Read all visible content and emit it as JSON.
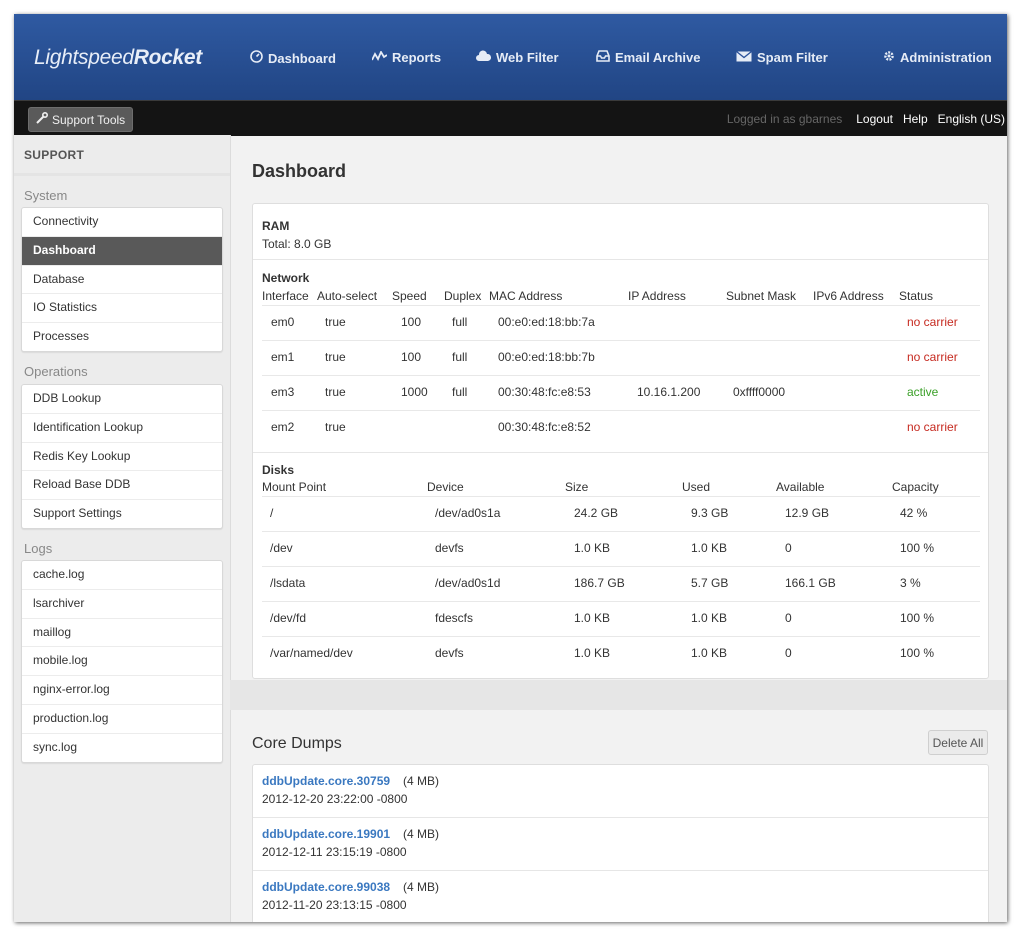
{
  "header": {
    "logo_light": "Lightspeed",
    "logo_bold": "Rocket",
    "nav": [
      {
        "label": "Dashboard",
        "icon": "dashboard-icon"
      },
      {
        "label": "Reports",
        "icon": "reports-icon"
      },
      {
        "label": "Web Filter",
        "icon": "web-filter-icon"
      },
      {
        "label": "Email Archive",
        "icon": "inbox-icon"
      },
      {
        "label": "Spam Filter",
        "icon": "envelope-icon"
      },
      {
        "label": "Administration",
        "icon": "gear-icon"
      }
    ]
  },
  "subbar": {
    "support_tools": "Support Tools",
    "logged_in": "Logged in as gbarnes",
    "logout": "Logout",
    "help": "Help",
    "language": "English (US)"
  },
  "sidebar": {
    "heading": "SUPPORT",
    "groups": [
      {
        "label": "System",
        "items": [
          "Connectivity",
          "Dashboard",
          "Database",
          "IO Statistics",
          "Processes"
        ]
      },
      {
        "label": "Operations",
        "items": [
          "DDB Lookup",
          "Identification Lookup",
          "Redis Key Lookup",
          "Reload Base DDB",
          "Support Settings"
        ]
      },
      {
        "label": "Logs",
        "items": [
          "cache.log",
          "lsarchiver",
          "maillog",
          "mobile.log",
          "nginx-error.log",
          "production.log",
          "sync.log"
        ]
      }
    ],
    "active": "Dashboard"
  },
  "main": {
    "title": "Dashboard",
    "ram": {
      "title": "RAM",
      "total": "Total: 8.0 GB"
    },
    "network": {
      "title": "Network",
      "columns": [
        "Interface",
        "Auto-select",
        "Speed",
        "Duplex",
        "MAC Address",
        "IP Address",
        "Subnet Mask",
        "IPv6 Address",
        "Status"
      ],
      "rows": [
        {
          "iface": "em0",
          "auto": "true",
          "speed": "100",
          "duplex": "full",
          "mac": "00:e0:ed:18:bb:7a",
          "ip": "",
          "mask": "",
          "ipv6": "",
          "status": "no carrier"
        },
        {
          "iface": "em1",
          "auto": "true",
          "speed": "100",
          "duplex": "full",
          "mac": "00:e0:ed:18:bb:7b",
          "ip": "",
          "mask": "",
          "ipv6": "",
          "status": "no carrier"
        },
        {
          "iface": "em3",
          "auto": "true",
          "speed": "1000",
          "duplex": "full",
          "mac": "00:30:48:fc:e8:53",
          "ip": "10.16.1.200",
          "mask": "0xffff0000",
          "ipv6": "",
          "status": "active"
        },
        {
          "iface": "em2",
          "auto": "true",
          "speed": "",
          "duplex": "",
          "mac": "00:30:48:fc:e8:52",
          "ip": "",
          "mask": "",
          "ipv6": "",
          "status": "no carrier"
        }
      ]
    },
    "disks": {
      "title": "Disks",
      "columns": [
        "Mount Point",
        "Device",
        "Size",
        "Used",
        "Available",
        "Capacity"
      ],
      "rows": [
        {
          "mount": "/",
          "device": "/dev/ad0s1a",
          "size": "24.2 GB",
          "used": "9.3 GB",
          "avail": "12.9 GB",
          "cap": "42 %"
        },
        {
          "mount": "/dev",
          "device": "devfs",
          "size": "1.0 KB",
          "used": "1.0 KB",
          "avail": "0",
          "cap": "100 %"
        },
        {
          "mount": "/lsdata",
          "device": "/dev/ad0s1d",
          "size": "186.7 GB",
          "used": "5.7 GB",
          "avail": "166.1 GB",
          "cap": "3 %"
        },
        {
          "mount": "/dev/fd",
          "device": "fdescfs",
          "size": "1.0 KB",
          "used": "1.0 KB",
          "avail": "0",
          "cap": "100 %"
        },
        {
          "mount": "/var/named/dev",
          "device": "devfs",
          "size": "1.0 KB",
          "used": "1.0 KB",
          "avail": "0",
          "cap": "100 %"
        }
      ]
    },
    "core_dumps": {
      "title": "Core Dumps",
      "delete_all": "Delete All",
      "items": [
        {
          "name": "ddbUpdate.core.30759",
          "size": "(4 MB)",
          "date": "2012-12-20 23:22:00 -0800"
        },
        {
          "name": "ddbUpdate.core.19901",
          "size": "(4 MB)",
          "date": "2012-12-11 23:15:19 -0800"
        },
        {
          "name": "ddbUpdate.core.99038",
          "size": "(4 MB)",
          "date": "2012-11-20 23:13:15 -0800"
        }
      ]
    }
  },
  "colors": {
    "nav_bg": "#2a519a",
    "subbar_bg": "#141414",
    "active_item": "#595959",
    "link": "#3a78c0",
    "status_bad": "#c62a20",
    "status_ok": "#3aa028"
  }
}
